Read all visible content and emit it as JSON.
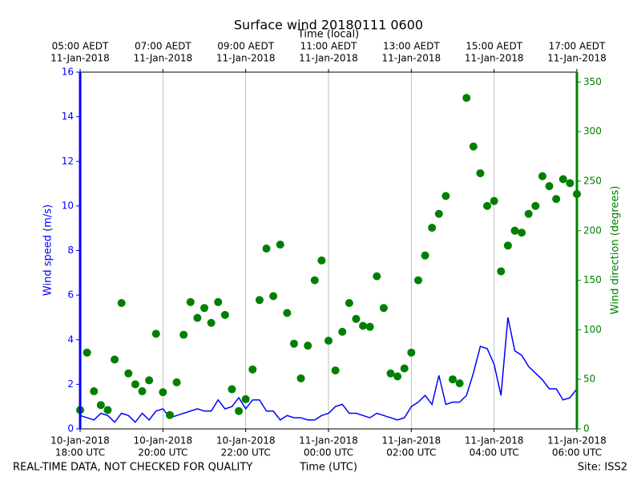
{
  "chart_data": {
    "type": "line",
    "title": "Surface wind 20180111 0600",
    "x2_label": "Time (local)",
    "x_label": "Time (UTC)",
    "y_label": "Wind speed (m/s)",
    "y2_label": "Wind direction (degrees)",
    "footer_left": "REAL-TIME DATA, NOT CHECKED FOR QUALITY",
    "footer_right": "Site: ISS2",
    "x": [
      "2018-01-10 18:00",
      "2018-01-10 18:10",
      "2018-01-10 18:20",
      "2018-01-10 18:30",
      "2018-01-10 18:40",
      "2018-01-10 18:50",
      "2018-01-10 19:00",
      "2018-01-10 19:10",
      "2018-01-10 19:20",
      "2018-01-10 19:30",
      "2018-01-10 19:40",
      "2018-01-10 19:50",
      "2018-01-10 20:00",
      "2018-01-10 20:10",
      "2018-01-10 20:20",
      "2018-01-10 20:30",
      "2018-01-10 20:40",
      "2018-01-10 20:50",
      "2018-01-10 21:00",
      "2018-01-10 21:10",
      "2018-01-10 21:20",
      "2018-01-10 21:30",
      "2018-01-10 21:40",
      "2018-01-10 21:50",
      "2018-01-10 22:00",
      "2018-01-10 22:10",
      "2018-01-10 22:20",
      "2018-01-10 22:30",
      "2018-01-10 22:40",
      "2018-01-10 22:50",
      "2018-01-10 23:00",
      "2018-01-10 23:10",
      "2018-01-10 23:20",
      "2018-01-10 23:30",
      "2018-01-10 23:40",
      "2018-01-10 23:50",
      "2018-01-11 00:00",
      "2018-01-11 00:10",
      "2018-01-11 00:20",
      "2018-01-11 00:30",
      "2018-01-11 00:40",
      "2018-01-11 00:50",
      "2018-01-11 01:00",
      "2018-01-11 01:10",
      "2018-01-11 01:20",
      "2018-01-11 01:30",
      "2018-01-11 01:40",
      "2018-01-11 01:50",
      "2018-01-11 02:00",
      "2018-01-11 02:10",
      "2018-01-11 02:20",
      "2018-01-11 02:30",
      "2018-01-11 02:40",
      "2018-01-11 02:50",
      "2018-01-11 03:00",
      "2018-01-11 03:10",
      "2018-01-11 03:20",
      "2018-01-11 03:30",
      "2018-01-11 03:40",
      "2018-01-11 03:50",
      "2018-01-11 04:00",
      "2018-01-11 04:10",
      "2018-01-11 04:20",
      "2018-01-11 04:30",
      "2018-01-11 04:40",
      "2018-01-11 04:50",
      "2018-01-11 05:00",
      "2018-01-11 05:10",
      "2018-01-11 05:20",
      "2018-01-11 05:30",
      "2018-01-11 05:40",
      "2018-01-11 05:50",
      "2018-01-11 06:00"
    ],
    "series": [
      {
        "name": "Wind speed",
        "kind": "line",
        "color": "#0000ff",
        "values": [
          0.6,
          0.5,
          0.4,
          0.7,
          0.6,
          0.3,
          0.7,
          0.6,
          0.3,
          0.7,
          0.4,
          0.8,
          0.9,
          0.5,
          0.6,
          0.7,
          0.8,
          0.9,
          0.8,
          0.8,
          1.3,
          0.9,
          1.0,
          1.4,
          0.9,
          1.3,
          1.3,
          0.8,
          0.8,
          0.4,
          0.6,
          0.5,
          0.5,
          0.4,
          0.4,
          0.6,
          0.7,
          1.0,
          1.1,
          0.7,
          0.7,
          0.6,
          0.5,
          0.7,
          0.6,
          0.5,
          0.4,
          0.5,
          1.0,
          1.2,
          1.5,
          1.1,
          2.4,
          1.1,
          1.2,
          1.2,
          1.5,
          2.5,
          3.7,
          3.6,
          2.9,
          1.5,
          5.0,
          3.5,
          3.3,
          2.8,
          2.5,
          2.2,
          1.8,
          1.8,
          1.3,
          1.4,
          1.8
        ]
      },
      {
        "name": "Wind direction",
        "kind": "scatter",
        "axis": "y2",
        "color": "#008000",
        "values": [
          19,
          77,
          38,
          24,
          19,
          70,
          127,
          56,
          45,
          38,
          49,
          96,
          37,
          14,
          47,
          95,
          128,
          112,
          122,
          107,
          128,
          115,
          40,
          18,
          30,
          60,
          130,
          182,
          134,
          186,
          117,
          86,
          51,
          84,
          150,
          170,
          89,
          59,
          98,
          127,
          111,
          104,
          103,
          154,
          122,
          56,
          53,
          61,
          77,
          150,
          175,
          203,
          217,
          235,
          50,
          46,
          334,
          285,
          258,
          225,
          230,
          159,
          185,
          200,
          198,
          217,
          225,
          255,
          245,
          232,
          252,
          248,
          237
        ]
      }
    ],
    "xlim": [
      "2018-01-10 18:00",
      "2018-01-11 06:00"
    ],
    "xticks": [
      {
        "value": "2018-01-10 18:00",
        "label": [
          "10-Jan-2018",
          "18:00 UTC"
        ]
      },
      {
        "value": "2018-01-10 20:00",
        "label": [
          "10-Jan-2018",
          "20:00 UTC"
        ]
      },
      {
        "value": "2018-01-10 22:00",
        "label": [
          "10-Jan-2018",
          "22:00 UTC"
        ]
      },
      {
        "value": "2018-01-11 00:00",
        "label": [
          "11-Jan-2018",
          "00:00 UTC"
        ]
      },
      {
        "value": "2018-01-11 02:00",
        "label": [
          "11-Jan-2018",
          "02:00 UTC"
        ]
      },
      {
        "value": "2018-01-11 04:00",
        "label": [
          "11-Jan-2018",
          "04:00 UTC"
        ]
      },
      {
        "value": "2018-01-11 06:00",
        "label": [
          "11-Jan-2018",
          "06:00 UTC"
        ]
      }
    ],
    "x2ticks": [
      {
        "value": "2018-01-10 18:00",
        "label": [
          "05:00 AEDT",
          "11-Jan-2018"
        ]
      },
      {
        "value": "2018-01-10 20:00",
        "label": [
          "07:00 AEDT",
          "11-Jan-2018"
        ]
      },
      {
        "value": "2018-01-10 22:00",
        "label": [
          "09:00 AEDT",
          "11-Jan-2018"
        ]
      },
      {
        "value": "2018-01-11 00:00",
        "label": [
          "11:00 AEDT",
          "11-Jan-2018"
        ]
      },
      {
        "value": "2018-01-11 02:00",
        "label": [
          "13:00 AEDT",
          "11-Jan-2018"
        ]
      },
      {
        "value": "2018-01-11 04:00",
        "label": [
          "15:00 AEDT",
          "11-Jan-2018"
        ]
      },
      {
        "value": "2018-01-11 06:00",
        "label": [
          "17:00 AEDT",
          "11-Jan-2018"
        ]
      }
    ],
    "ylim": [
      0,
      16
    ],
    "yticks": [
      0,
      2,
      4,
      6,
      8,
      10,
      12,
      14,
      16
    ],
    "y_color": "#0000ff",
    "y2lim": [
      0,
      360
    ],
    "y2ticks": [
      0,
      50,
      100,
      150,
      200,
      250,
      300,
      350
    ],
    "y2_color": "#008000",
    "grid": "x"
  }
}
